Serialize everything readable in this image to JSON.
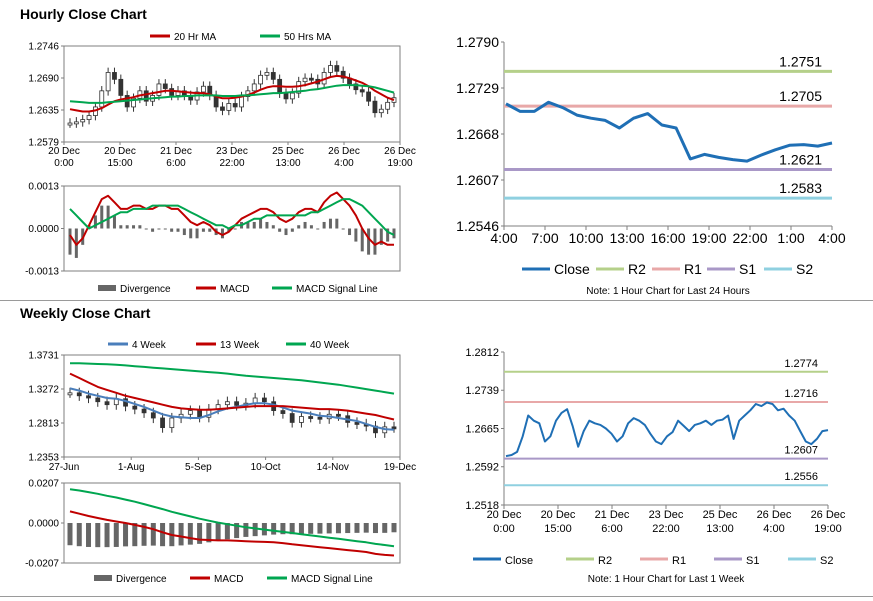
{
  "sections": {
    "hourly_title": "Hourly Close Chart",
    "weekly_title": "Weekly Close Chart"
  },
  "colors": {
    "red": "#c00000",
    "green": "#00a650",
    "blue": "#4a7ebb",
    "close_line": "#1f6fb5",
    "r2": "#b5d08a",
    "r1": "#e8a8a8",
    "s1": "#a998c7",
    "s2": "#8fd0e0",
    "bar": "#666666"
  },
  "chart_data": [
    {
      "id": "hourly_price",
      "type": "candlestick",
      "legend": [
        "20 Hr MA",
        "50 Hrs MA"
      ],
      "y_ticks": [
        "1.2746",
        "1.2690",
        "1.2635",
        "1.2579"
      ],
      "ylim": [
        1.2579,
        1.2746
      ],
      "x_ticks": [
        [
          "20 Dec",
          "0:00"
        ],
        [
          "20 Dec",
          "15:00"
        ],
        [
          "21 Dec",
          "6:00"
        ],
        [
          "23 Dec",
          "22:00"
        ],
        [
          "25 Dec",
          "13:00"
        ],
        [
          "26 Dec",
          "4:00"
        ],
        [
          "26 Dec",
          "19:00"
        ]
      ],
      "close": [
        1.2612,
        1.2614,
        1.2618,
        1.2625,
        1.264,
        1.2668,
        1.27,
        1.2688,
        1.266,
        1.264,
        1.2655,
        1.2668,
        1.265,
        1.266,
        1.268,
        1.2672,
        1.266,
        1.2668,
        1.266,
        1.2652,
        1.2666,
        1.2676,
        1.266,
        1.264,
        1.2634,
        1.2646,
        1.264,
        1.2658,
        1.2668,
        1.268,
        1.2695,
        1.27,
        1.2688,
        1.2664,
        1.2654,
        1.2664,
        1.2684,
        1.269,
        1.2688,
        1.268,
        1.27,
        1.2712,
        1.2702,
        1.269,
        1.268,
        1.267,
        1.2666,
        1.265,
        1.263,
        1.2636,
        1.2648,
        1.2656
      ],
      "ma20": [
        1.2636,
        1.2634,
        1.2632,
        1.2632,
        1.2634,
        1.2638,
        1.2644,
        1.265,
        1.2653,
        1.2655,
        1.2657,
        1.266,
        1.2662,
        1.2664,
        1.2666,
        1.2668,
        1.2668,
        1.2667,
        1.2666,
        1.2665,
        1.2664,
        1.2664,
        1.2662,
        1.2658,
        1.2655,
        1.2655,
        1.2656,
        1.2658,
        1.2661,
        1.2665,
        1.267,
        1.2674,
        1.2676,
        1.2676,
        1.2675,
        1.2675,
        1.2676,
        1.2678,
        1.2681,
        1.2684,
        1.2688,
        1.2692,
        1.2694,
        1.2693,
        1.269,
        1.2686,
        1.2682,
        1.2676,
        1.2668,
        1.2662,
        1.2656,
        1.2652
      ],
      "ma50": [
        1.265,
        1.2649,
        1.2648,
        1.2647,
        1.2647,
        1.2647,
        1.2648,
        1.2649,
        1.265,
        1.2651,
        1.2652,
        1.2653,
        1.2654,
        1.2655,
        1.2656,
        1.2657,
        1.2658,
        1.2658,
        1.2659,
        1.2659,
        1.266,
        1.266,
        1.266,
        1.266,
        1.2659,
        1.2659,
        1.2659,
        1.266,
        1.266,
        1.2661,
        1.2662,
        1.2663,
        1.2664,
        1.2664,
        1.2665,
        1.2666,
        1.2667,
        1.2668,
        1.267,
        1.2671,
        1.2673,
        1.2675,
        1.2677,
        1.2678,
        1.2678,
        1.2678,
        1.2677,
        1.2676,
        1.2674,
        1.2671,
        1.2668,
        1.2665
      ]
    },
    {
      "id": "hourly_macd",
      "type": "bar+line",
      "legend": [
        "Divergence",
        "MACD",
        "MACD Signal Line"
      ],
      "y_ticks": [
        "0.0013",
        "0.0000",
        "-0.0013"
      ],
      "ylim": [
        -0.0013,
        0.0013
      ],
      "macd": [
        -0.0002,
        -0.0005,
        -0.0003,
        0.0001,
        0.0005,
        0.0009,
        0.001,
        0.0008,
        0.0006,
        0.0006,
        0.0007,
        0.0007,
        0.0006,
        0.0006,
        0.0007,
        0.0007,
        0.0006,
        0.0006,
        0.0004,
        0.0002,
        0.0001,
        0.0002,
        0.0001,
        -0.0001,
        -0.0002,
        -0.0001,
        0.0001,
        0.0003,
        0.0004,
        0.0005,
        0.0006,
        0.0006,
        0.0005,
        0.0003,
        0.0002,
        0.0003,
        0.0005,
        0.0006,
        0.0006,
        0.0005,
        0.0008,
        0.001,
        0.0011,
        0.0009,
        0.0007,
        0.0004,
        0.0,
        -0.0003,
        -0.0005,
        -0.0004,
        -0.0005,
        -0.0005
      ],
      "signal": [
        0.0006,
        0.0004,
        0.0002,
        0.0,
        0.0001,
        0.0002,
        0.0003,
        0.0004,
        0.0005,
        0.0005,
        0.0006,
        0.0006,
        0.0006,
        0.0007,
        0.0007,
        0.0007,
        0.0007,
        0.0007,
        0.0006,
        0.0005,
        0.0004,
        0.0003,
        0.0002,
        0.0001,
        0.0001,
        0.0,
        0.0001,
        0.0001,
        0.0002,
        0.0003,
        0.0003,
        0.0004,
        0.0004,
        0.0004,
        0.0004,
        0.0004,
        0.0004,
        0.0004,
        0.0005,
        0.0005,
        0.0006,
        0.0007,
        0.0008,
        0.0009,
        0.0009,
        0.0008,
        0.0007,
        0.0005,
        0.0003,
        0.0001,
        -0.0001,
        -0.0002
      ]
    },
    {
      "id": "hourly_line",
      "type": "line",
      "y_ticks": [
        "1.2790",
        "1.2729",
        "1.2668",
        "1.2607",
        "1.2546"
      ],
      "ylim": [
        1.2546,
        1.279
      ],
      "x_ticks": [
        "4:00",
        "7:00",
        "10:00",
        "13:00",
        "16:00",
        "19:00",
        "22:00",
        "1:00",
        "4:00"
      ],
      "close": [
        1.2708,
        1.2698,
        1.2698,
        1.271,
        1.2703,
        1.2693,
        1.2689,
        1.2686,
        1.2676,
        1.2689,
        1.2695,
        1.268,
        1.2676,
        1.2635,
        1.2641,
        1.2637,
        1.2634,
        1.2632,
        1.264,
        1.2647,
        1.2653,
        1.2654,
        1.2652,
        1.2656
      ],
      "levels": [
        {
          "name": "R2",
          "value": 1.2751,
          "label": "1.2751"
        },
        {
          "name": "R1",
          "value": 1.2705,
          "label": "1.2705"
        },
        {
          "name": "S1",
          "value": 1.2621,
          "label": "1.2621"
        },
        {
          "name": "S2",
          "value": 1.2583,
          "label": "1.2583"
        }
      ],
      "legend": [
        "Close",
        "R2",
        "R1",
        "S1",
        "S2"
      ],
      "note": "Note: 1 Hour Chart for Last 24 Hours"
    },
    {
      "id": "weekly_price",
      "type": "candlestick",
      "legend": [
        "4 Week",
        "13 Week",
        "40 Week"
      ],
      "y_ticks": [
        "1.3731",
        "1.3272",
        "1.2813",
        "1.2353"
      ],
      "ylim": [
        1.2353,
        1.3731
      ],
      "x_ticks": [
        "27-Jun",
        "1-Aug",
        "5-Sep",
        "10-Oct",
        "14-Nov",
        "19-Dec"
      ],
      "close": [
        1.322,
        1.318,
        1.315,
        1.31,
        1.306,
        1.314,
        1.304,
        1.3,
        1.295,
        1.288,
        1.275,
        1.288,
        1.293,
        1.298,
        1.289,
        1.3,
        1.306,
        1.31,
        1.305,
        1.308,
        1.315,
        1.31,
        1.298,
        1.294,
        1.282,
        1.29,
        1.289,
        1.287,
        1.293,
        1.291,
        1.282,
        1.28,
        1.277,
        1.268,
        1.276,
        1.275
      ],
      "w4": [
        1.328,
        1.325,
        1.321,
        1.318,
        1.315,
        1.314,
        1.311,
        1.307,
        1.303,
        1.298,
        1.293,
        1.29,
        1.289,
        1.288,
        1.288,
        1.292,
        1.297,
        1.301,
        1.303,
        1.306,
        1.308,
        1.308,
        1.306,
        1.302,
        1.298,
        1.296,
        1.294,
        1.291,
        1.29,
        1.288,
        1.286,
        1.284,
        1.28,
        1.276,
        1.273,
        1.272
      ],
      "w13": [
        1.348,
        1.342,
        1.336,
        1.33,
        1.326,
        1.322,
        1.318,
        1.315,
        1.312,
        1.309,
        1.306,
        1.303,
        1.301,
        1.3,
        1.299,
        1.299,
        1.3,
        1.301,
        1.302,
        1.303,
        1.304,
        1.304,
        1.304,
        1.304,
        1.303,
        1.302,
        1.301,
        1.3,
        1.3,
        1.299,
        1.298,
        1.296,
        1.294,
        1.292,
        1.289,
        1.286
      ],
      "w40": [
        1.362,
        1.362,
        1.3615,
        1.361,
        1.3605,
        1.36,
        1.359,
        1.358,
        1.357,
        1.356,
        1.355,
        1.354,
        1.353,
        1.352,
        1.351,
        1.35,
        1.349,
        1.348,
        1.3465,
        1.345,
        1.344,
        1.343,
        1.342,
        1.341,
        1.34,
        1.339,
        1.3375,
        1.336,
        1.3345,
        1.333,
        1.331,
        1.329,
        1.327,
        1.325,
        1.323,
        1.321
      ]
    },
    {
      "id": "weekly_macd",
      "type": "bar+line",
      "legend": [
        "Divergence",
        "MACD",
        "MACD Signal Line"
      ],
      "y_ticks": [
        "0.0207",
        "0.0000",
        "-0.0207"
      ],
      "ylim": [
        -0.0207,
        0.0207
      ],
      "macd": [
        0.006,
        0.0048,
        0.0036,
        0.0026,
        0.0016,
        0.0008,
        0.0,
        -0.001,
        -0.002,
        -0.0032,
        -0.0048,
        -0.0062,
        -0.007,
        -0.0078,
        -0.0086,
        -0.0088,
        -0.009,
        -0.009,
        -0.0092,
        -0.0094,
        -0.0096,
        -0.0098,
        -0.01,
        -0.0104,
        -0.011,
        -0.0115,
        -0.012,
        -0.0125,
        -0.013,
        -0.0135,
        -0.014,
        -0.0145,
        -0.015,
        -0.016,
        -0.0165,
        -0.0168
      ],
      "signal": [
        0.0175,
        0.0168,
        0.016,
        0.0151,
        0.0141,
        0.0132,
        0.0121,
        0.011,
        0.0098,
        0.0085,
        0.0072,
        0.0058,
        0.0046,
        0.0034,
        0.0022,
        0.0012,
        0.0002,
        -0.0006,
        -0.0014,
        -0.0022,
        -0.0028,
        -0.0034,
        -0.004,
        -0.0046,
        -0.0052,
        -0.0058,
        -0.0064,
        -0.007,
        -0.0076,
        -0.0082,
        -0.0088,
        -0.0094,
        -0.01,
        -0.0108,
        -0.0114,
        -0.012
      ]
    },
    {
      "id": "weekly_line",
      "type": "line",
      "y_ticks": [
        "1.2812",
        "1.2739",
        "1.2665",
        "1.2592",
        "1.2518"
      ],
      "ylim": [
        1.2518,
        1.2812
      ],
      "x_ticks": [
        [
          "20 Dec",
          "0:00"
        ],
        [
          "20 Dec",
          "15:00"
        ],
        [
          "21 Dec",
          "6:00"
        ],
        [
          "23 Dec",
          "22:00"
        ],
        [
          "25 Dec",
          "13:00"
        ],
        [
          "26 Dec",
          "4:00"
        ],
        [
          "26 Dec",
          "19:00"
        ]
      ],
      "close": [
        1.2612,
        1.2614,
        1.262,
        1.265,
        1.269,
        1.268,
        1.2675,
        1.264,
        1.265,
        1.268,
        1.2695,
        1.2702,
        1.267,
        1.263,
        1.266,
        1.268,
        1.2675,
        1.2672,
        1.2665,
        1.2655,
        1.264,
        1.265,
        1.2675,
        1.2685,
        1.268,
        1.2672,
        1.2655,
        1.264,
        1.2635,
        1.265,
        1.2658,
        1.268,
        1.267,
        1.266,
        1.2672,
        1.2675,
        1.268,
        1.2672,
        1.268,
        1.2682,
        1.269,
        1.2645,
        1.268,
        1.269,
        1.27,
        1.2712,
        1.2708,
        1.2715,
        1.2712,
        1.27,
        1.2703,
        1.269,
        1.268,
        1.266,
        1.264,
        1.2635,
        1.2645,
        1.266,
        1.2662
      ],
      "levels": [
        {
          "name": "R2",
          "value": 1.2774,
          "label": "1.2774"
        },
        {
          "name": "R1",
          "value": 1.2716,
          "label": "1.2716"
        },
        {
          "name": "S1",
          "value": 1.2607,
          "label": "1.2607"
        },
        {
          "name": "S2",
          "value": 1.2556,
          "label": "1.2556"
        }
      ],
      "legend": [
        "Close",
        "R2",
        "R1",
        "S1",
        "S2"
      ],
      "note": "Note: 1 Hour Chart for Last 1 Week"
    }
  ]
}
